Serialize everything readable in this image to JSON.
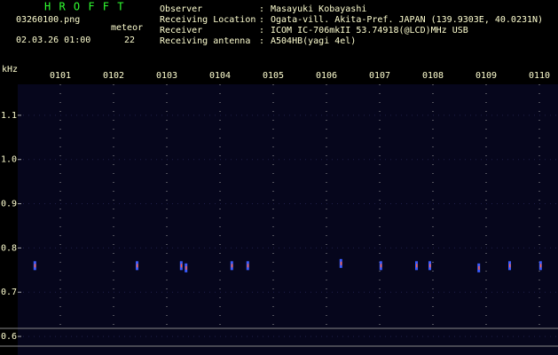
{
  "header": {
    "title": "H R O F F T",
    "file": "03260100.png",
    "datetime": "02.03.26 01:00",
    "meteor_label": "meteor",
    "meteor_count": 22,
    "separator": ":",
    "fields": [
      {
        "label": "Observer",
        "value": "Masayuki Kobayashi"
      },
      {
        "label": "Receiving Location",
        "value": "Ogata-vill. Akita-Pref. JAPAN (139.9303E, 40.0231N)"
      },
      {
        "label": "Receiver",
        "value": "ICOM IC-706mkII 53.74918(@LCD)MHz USB"
      },
      {
        "label": "Receiving antenna",
        "value": "A504HB(yagi 4el)"
      }
    ]
  },
  "chart_data": {
    "type": "spectrogram",
    "y_label": "kHz",
    "xlim": [
      0.2,
      10.35
    ],
    "xticks": [
      {
        "value": 1,
        "label": "0101"
      },
      {
        "value": 2,
        "label": "0102"
      },
      {
        "value": 3,
        "label": "0103"
      },
      {
        "value": 4,
        "label": "0104"
      },
      {
        "value": 5,
        "label": "0105"
      },
      {
        "value": 6,
        "label": "0106"
      },
      {
        "value": 7,
        "label": "0107"
      },
      {
        "value": 8,
        "label": "0108"
      },
      {
        "value": 9,
        "label": "0109"
      },
      {
        "value": 10,
        "label": "0110"
      }
    ],
    "ylim": [
      0.558,
      1.17
    ],
    "yticks": [
      0.6,
      0.7,
      0.8,
      0.9,
      {
        "value": 1,
        "label": "1.0"
      },
      1.1
    ],
    "series": [
      {
        "color": "#3a5cff",
        "x": [
          0.53,
          2.45,
          3.28,
          3.37,
          4.23,
          4.53,
          6.28,
          7.03,
          7.7,
          7.95,
          8.87,
          9.45,
          10.03
        ],
        "values": [
          0.76,
          0.76,
          0.76,
          0.755,
          0.76,
          0.76,
          0.765,
          0.76,
          0.76,
          0.76,
          0.755,
          0.76,
          0.76
        ]
      }
    ]
  }
}
